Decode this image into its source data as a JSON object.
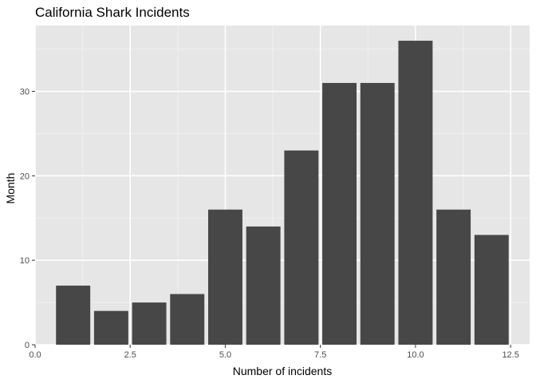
{
  "chart_data": {
    "type": "bar",
    "title": "California Shark Incidents",
    "xlabel": "Number of incidents",
    "ylabel": "Month",
    "x": [
      1,
      2,
      3,
      4,
      5,
      6,
      7,
      8,
      9,
      10,
      11,
      12
    ],
    "values": [
      7,
      4,
      5,
      6,
      16,
      14,
      23,
      31,
      31,
      36,
      16,
      13
    ],
    "xlim": [
      0,
      13
    ],
    "ylim": [
      0,
      37.8
    ],
    "x_ticks": [
      "0.0",
      "2.5",
      "5.0",
      "7.5",
      "10.0",
      "12.5"
    ],
    "y_ticks": [
      "0",
      "10",
      "20",
      "30"
    ],
    "grid": true,
    "colors": {
      "bar": "#474747",
      "panel": "#e6e6e6",
      "grid_major": "#ffffff",
      "grid_minor": "#f1f1f1",
      "tick_label": "#4d4d4d",
      "tick_mark": "#333333"
    }
  }
}
